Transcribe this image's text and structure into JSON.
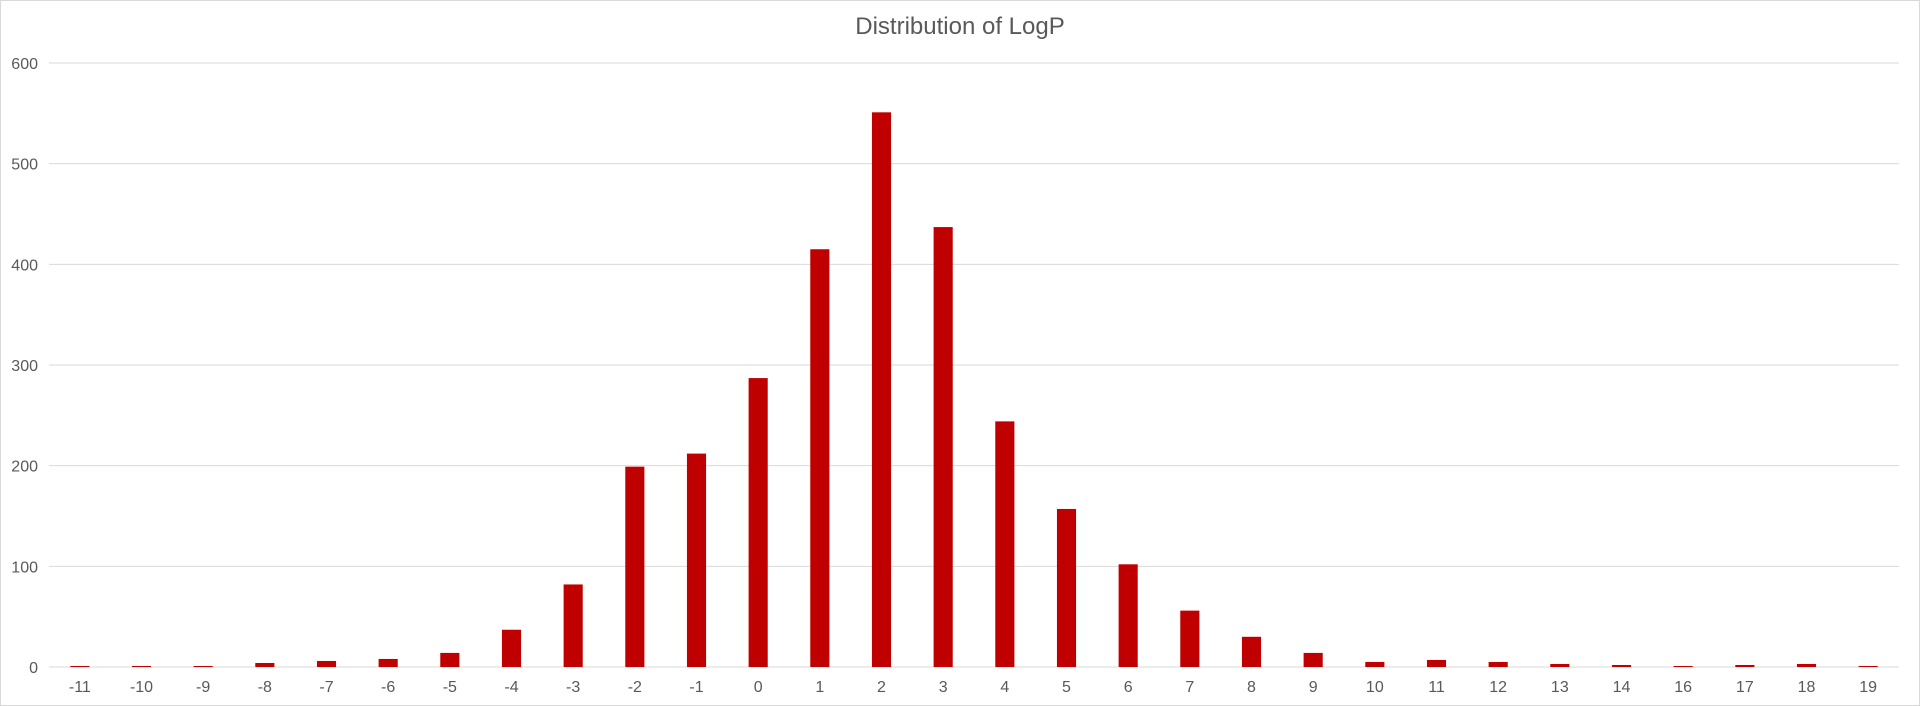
{
  "chart_data": {
    "type": "bar",
    "title": "Distribution of LogP",
    "xlabel": "",
    "ylabel": "",
    "categories": [
      "-11",
      "-10",
      "-9",
      "-8",
      "-7",
      "-6",
      "-5",
      "-4",
      "-3",
      "-2",
      "-1",
      "0",
      "1",
      "2",
      "3",
      "4",
      "5",
      "6",
      "7",
      "8",
      "9",
      "10",
      "11",
      "12",
      "13",
      "14",
      "16",
      "17",
      "18",
      "19"
    ],
    "values": [
      1,
      1,
      1,
      4,
      6,
      8,
      14,
      37,
      82,
      199,
      212,
      287,
      415,
      551,
      437,
      244,
      157,
      102,
      56,
      30,
      14,
      5,
      7,
      5,
      3,
      2,
      1,
      2,
      3,
      1
    ],
    "ylim": [
      0,
      600
    ],
    "yticks": [
      0,
      100,
      200,
      300,
      400,
      500,
      600
    ],
    "grid": true,
    "legend": "none",
    "bar_color": "#c00000",
    "grid_color": "#d9d9d9",
    "text_color": "#595959"
  }
}
